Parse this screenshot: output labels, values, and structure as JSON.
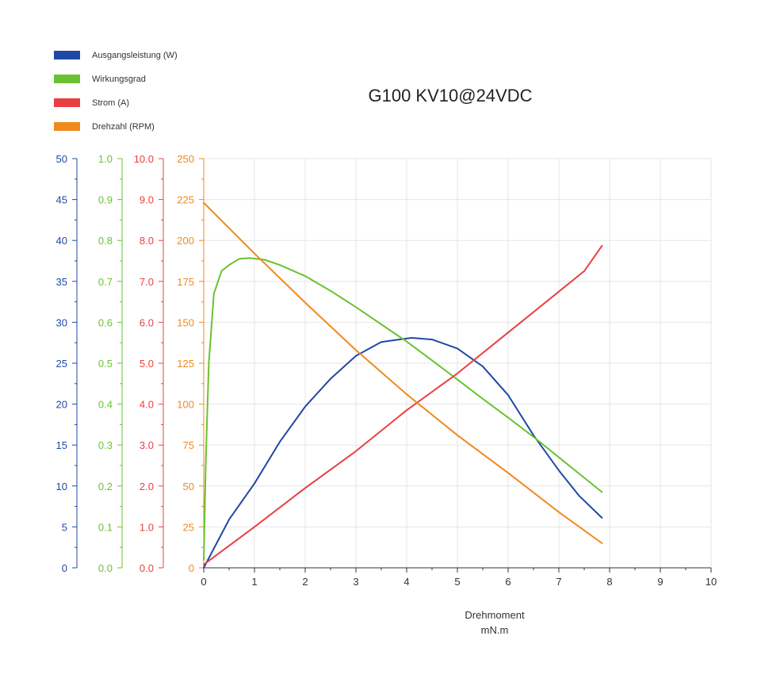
{
  "chart_data": {
    "type": "line",
    "title": "G100 KV10@24VDC",
    "xlabel": [
      "Drehmoment",
      "mN.m"
    ],
    "xlim": [
      0,
      10
    ],
    "x_ticks": [
      "0",
      "1",
      "2",
      "3",
      "4",
      "5",
      "6",
      "7",
      "8",
      "9",
      "10"
    ],
    "grid": true,
    "legend_position": "top-left",
    "series": [
      {
        "name": "Ausgangsleistung (W)",
        "color": "#1f49a4",
        "axis": "power",
        "points": [
          [
            0,
            0
          ],
          [
            0.5,
            5.9
          ],
          [
            1,
            10.3
          ],
          [
            1.5,
            15.4
          ],
          [
            2,
            19.7
          ],
          [
            2.5,
            23.1
          ],
          [
            3,
            25.9
          ],
          [
            3.5,
            27.6
          ],
          [
            4.1,
            28.1
          ],
          [
            4.5,
            27.9
          ],
          [
            5,
            26.8
          ],
          [
            5.5,
            24.6
          ],
          [
            6,
            21.1
          ],
          [
            6.5,
            16.2
          ],
          [
            7,
            11.9
          ],
          [
            7.4,
            8.8
          ],
          [
            7.85,
            6.1
          ]
        ]
      },
      {
        "name": "Wirkungsgrad",
        "color": "#6ac232",
        "axis": "efficiency",
        "points": [
          [
            0,
            0.02
          ],
          [
            0.04,
            0.26
          ],
          [
            0.1,
            0.5
          ],
          [
            0.2,
            0.67
          ],
          [
            0.35,
            0.725
          ],
          [
            0.5,
            0.74
          ],
          [
            0.7,
            0.755
          ],
          [
            0.9,
            0.757
          ],
          [
            1.2,
            0.753
          ],
          [
            1.5,
            0.74
          ],
          [
            2,
            0.713
          ],
          [
            2.5,
            0.677
          ],
          [
            3,
            0.637
          ],
          [
            3.5,
            0.595
          ],
          [
            4,
            0.553
          ],
          [
            4.5,
            0.507
          ],
          [
            5,
            0.46
          ],
          [
            5.5,
            0.413
          ],
          [
            6,
            0.367
          ],
          [
            6.5,
            0.32
          ],
          [
            7,
            0.27
          ],
          [
            7.5,
            0.22
          ],
          [
            7.85,
            0.185
          ]
        ]
      },
      {
        "name": "Strom (A)",
        "color": "#e84040",
        "axis": "current",
        "points": [
          [
            0,
            0.08
          ],
          [
            1,
            1.0
          ],
          [
            2,
            1.95
          ],
          [
            3,
            2.85
          ],
          [
            4,
            3.85
          ],
          [
            5,
            4.75
          ],
          [
            6,
            5.75
          ],
          [
            7,
            6.75
          ],
          [
            7.5,
            7.25
          ],
          [
            7.85,
            7.87
          ]
        ]
      },
      {
        "name": "Drehzahl (RPM)",
        "color": "#f08a1c",
        "axis": "speed",
        "points": [
          [
            0,
            223
          ],
          [
            1,
            192
          ],
          [
            2,
            162
          ],
          [
            3,
            133
          ],
          [
            4,
            106
          ],
          [
            5,
            81
          ],
          [
            6,
            58
          ],
          [
            7,
            34
          ],
          [
            7.85,
            15
          ]
        ]
      }
    ],
    "y_axes": [
      {
        "id": "power",
        "ylim": [
          0,
          50
        ],
        "color": "#1f49a4",
        "ticks": [
          "0",
          "5",
          "10",
          "15",
          "20",
          "25",
          "30",
          "35",
          "40",
          "45",
          "50"
        ]
      },
      {
        "id": "efficiency",
        "ylim": [
          0,
          1
        ],
        "color": "#6ac232",
        "ticks": [
          "0.0",
          "0.1",
          "0.2",
          "0.3",
          "0.4",
          "0.5",
          "0.6",
          "0.7",
          "0.8",
          "0.9",
          "1.0"
        ]
      },
      {
        "id": "current",
        "ylim": [
          0,
          10
        ],
        "color": "#e84040",
        "ticks": [
          "0.0",
          "1.0",
          "2.0",
          "3.0",
          "4.0",
          "5.0",
          "6.0",
          "7.0",
          "8.0",
          "9.0",
          "10.0"
        ]
      },
      {
        "id": "speed",
        "ylim": [
          0,
          250
        ],
        "color": "#f08a1c",
        "ticks": [
          "0",
          "25",
          "50",
          "75",
          "100",
          "125",
          "150",
          "175",
          "200",
          "225",
          "250"
        ]
      }
    ]
  }
}
